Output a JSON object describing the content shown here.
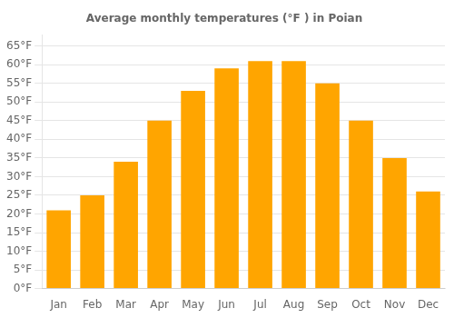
{
  "chart_data": {
    "type": "bar",
    "title": "Average monthly temperatures (°F ) in Poian",
    "categories": [
      "Jan",
      "Feb",
      "Mar",
      "Apr",
      "May",
      "Jun",
      "Jul",
      "Aug",
      "Sep",
      "Oct",
      "Nov",
      "Dec"
    ],
    "values": [
      21,
      25,
      34,
      45,
      53,
      59,
      61,
      61,
      55,
      45,
      35,
      26
    ],
    "color": "#FFA500",
    "ylim": [
      0,
      68
    ],
    "yticks": [
      {
        "value": 0,
        "label": "0°F"
      },
      {
        "value": 5,
        "label": "5°F"
      },
      {
        "value": 10,
        "label": "10°F"
      },
      {
        "value": 15,
        "label": "15°F"
      },
      {
        "value": 20,
        "label": "20°F"
      },
      {
        "value": 25,
        "label": "25°F"
      },
      {
        "value": 30,
        "label": "30°F"
      },
      {
        "value": 35,
        "label": "35°F"
      },
      {
        "value": 40,
        "label": "40°F"
      },
      {
        "value": 45,
        "label": "45°F"
      },
      {
        "value": 50,
        "label": "50°F"
      },
      {
        "value": 55,
        "label": "55°F"
      },
      {
        "value": 60,
        "label": "60°F"
      },
      {
        "value": 65,
        "label": "65°F"
      }
    ],
    "grid": true
  }
}
